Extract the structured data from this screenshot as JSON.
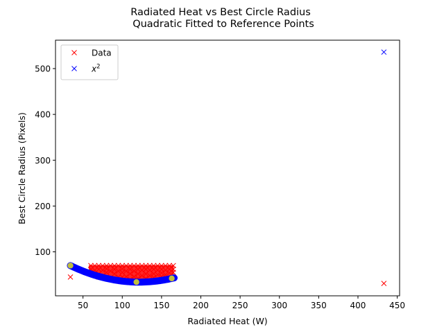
{
  "chart_data": {
    "type": "scatter",
    "title": "Radiated Heat vs Best Circle Radius",
    "subtitle": "Quadratic Fitted to Reference Points",
    "xlabel": "Radiated Heat (W)",
    "ylabel": "Best Circle Radius (Pixels)",
    "xlim": [
      15,
      453
    ],
    "ylim": [
      4,
      562
    ],
    "x_ticks": [
      50,
      100,
      150,
      200,
      250,
      300,
      350,
      400,
      450
    ],
    "y_ticks": [
      100,
      200,
      300,
      400,
      500
    ],
    "grid": false,
    "legend": {
      "placement": "top-left",
      "entries": [
        {
          "label": "Data",
          "series": "data"
        },
        {
          "label": "x²",
          "label_base": "x",
          "label_sup": "2",
          "series": "fit"
        }
      ]
    },
    "series": [
      {
        "key": "data",
        "name": "Data",
        "marker": "x",
        "color": "#ff0000",
        "dense_band": {
          "x_range": [
            58,
            165
          ],
          "y_top": 70,
          "y_bottom_curve_of": "fit"
        },
        "points": [
          [
            34,
            45
          ],
          [
            433,
            31
          ],
          [
            60,
            70
          ],
          [
            60,
            62
          ],
          [
            60,
            55
          ],
          [
            65,
            70
          ],
          [
            65,
            60
          ],
          [
            65,
            50
          ],
          [
            70,
            70
          ],
          [
            70,
            62
          ],
          [
            70,
            52
          ],
          [
            70,
            45
          ],
          [
            75,
            70
          ],
          [
            75,
            60
          ],
          [
            75,
            48
          ],
          [
            80,
            70
          ],
          [
            80,
            63
          ],
          [
            80,
            55
          ],
          [
            80,
            45
          ],
          [
            85,
            70
          ],
          [
            85,
            58
          ],
          [
            85,
            42
          ],
          [
            90,
            70
          ],
          [
            90,
            62
          ],
          [
            90,
            52
          ],
          [
            90,
            40
          ],
          [
            95,
            70
          ],
          [
            95,
            58
          ],
          [
            95,
            45
          ],
          [
            100,
            70
          ],
          [
            100,
            63
          ],
          [
            100,
            55
          ],
          [
            100,
            45
          ],
          [
            100,
            38
          ],
          [
            105,
            70
          ],
          [
            105,
            58
          ],
          [
            105,
            46
          ],
          [
            110,
            70
          ],
          [
            110,
            62
          ],
          [
            110,
            52
          ],
          [
            110,
            40
          ],
          [
            115,
            70
          ],
          [
            115,
            58
          ],
          [
            115,
            46
          ],
          [
            120,
            70
          ],
          [
            120,
            62
          ],
          [
            120,
            52
          ],
          [
            120,
            42
          ],
          [
            125,
            70
          ],
          [
            125,
            60
          ],
          [
            125,
            48
          ],
          [
            130,
            70
          ],
          [
            130,
            62
          ],
          [
            130,
            52
          ],
          [
            130,
            42
          ],
          [
            135,
            70
          ],
          [
            135,
            60
          ],
          [
            135,
            48
          ],
          [
            140,
            70
          ],
          [
            140,
            62
          ],
          [
            140,
            52
          ],
          [
            140,
            44
          ],
          [
            145,
            70
          ],
          [
            145,
            60
          ],
          [
            145,
            50
          ],
          [
            150,
            70
          ],
          [
            150,
            62
          ],
          [
            150,
            54
          ],
          [
            150,
            46
          ],
          [
            155,
            70
          ],
          [
            155,
            60
          ],
          [
            155,
            50
          ],
          [
            160,
            70
          ],
          [
            160,
            62
          ],
          [
            160,
            54
          ],
          [
            165,
            70
          ],
          [
            165,
            62
          ],
          [
            165,
            55
          ]
        ]
      },
      {
        "key": "fit",
        "name": "x²",
        "marker": "x",
        "color": "#0000ff",
        "fit": {
          "type": "quadratic",
          "x_range": [
            34,
            166
          ]
        },
        "points": [
          [
            433,
            536
          ]
        ]
      },
      {
        "key": "reference",
        "marker": "o",
        "color": "#bfbf3f",
        "points": [
          [
            34,
            70
          ],
          [
            118,
            34
          ],
          [
            163,
            42
          ]
        ]
      }
    ]
  }
}
